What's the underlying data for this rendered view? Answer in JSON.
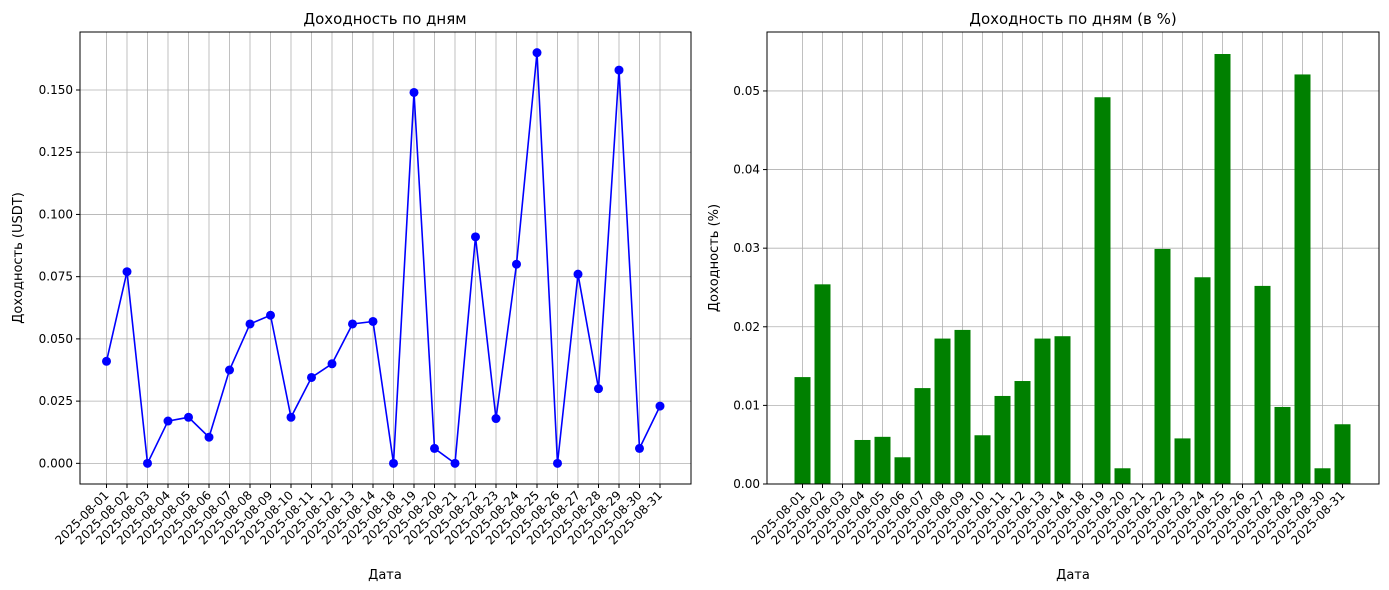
{
  "charts": [
    {
      "title": "Доходность по дням",
      "xlabel": "Дата",
      "ylabel": "Доходность (USDT)"
    },
    {
      "title": "Доходность по дням (в %)",
      "xlabel": "Дата",
      "ylabel": "Доходность (%)"
    }
  ],
  "colors": {
    "line": "#0000ff",
    "bar": "#008000"
  },
  "chart_data": [
    {
      "type": "line",
      "title": "Доходность по дням",
      "xlabel": "Дата",
      "ylabel": "Доходность (USDT)",
      "categories": [
        "2025-08-01",
        "2025-08-02",
        "2025-08-03",
        "2025-08-04",
        "2025-08-05",
        "2025-08-06",
        "2025-08-07",
        "2025-08-08",
        "2025-08-09",
        "2025-08-10",
        "2025-08-11",
        "2025-08-12",
        "2025-08-13",
        "2025-08-14",
        "2025-08-18",
        "2025-08-19",
        "2025-08-20",
        "2025-08-21",
        "2025-08-22",
        "2025-08-23",
        "2025-08-24",
        "2025-08-25",
        "2025-08-26",
        "2025-08-27",
        "2025-08-28",
        "2025-08-29",
        "2025-08-30",
        "2025-08-31"
      ],
      "values": [
        0.041,
        0.077,
        0.0,
        0.017,
        0.0185,
        0.0105,
        0.0375,
        0.056,
        0.0595,
        0.0185,
        0.0345,
        0.04,
        0.056,
        0.057,
        0.0,
        0.149,
        0.006,
        0.0,
        0.091,
        0.018,
        0.08,
        0.165,
        0.0,
        0.076,
        0.03,
        0.158,
        0.006,
        0.023
      ],
      "marker": "circle",
      "yticks": [
        0.0,
        0.025,
        0.05,
        0.075,
        0.1,
        0.125,
        0.15
      ],
      "ytick_labels": [
        "0.000",
        "0.025",
        "0.050",
        "0.075",
        "0.100",
        "0.125",
        "0.150"
      ],
      "ylim": [
        -0.0083,
        0.1733
      ],
      "grid": true
    },
    {
      "type": "bar",
      "title": "Доходность по дням (в %)",
      "xlabel": "Дата",
      "ylabel": "Доходность (%)",
      "categories": [
        "2025-08-01",
        "2025-08-02",
        "2025-08-03",
        "2025-08-04",
        "2025-08-05",
        "2025-08-06",
        "2025-08-07",
        "2025-08-08",
        "2025-08-09",
        "2025-08-10",
        "2025-08-11",
        "2025-08-12",
        "2025-08-13",
        "2025-08-14",
        "2025-08-18",
        "2025-08-19",
        "2025-08-20",
        "2025-08-21",
        "2025-08-22",
        "2025-08-23",
        "2025-08-24",
        "2025-08-25",
        "2025-08-26",
        "2025-08-27",
        "2025-08-28",
        "2025-08-29",
        "2025-08-30",
        "2025-08-31"
      ],
      "values": [
        0.0136,
        0.0254,
        0.0,
        0.0056,
        0.006,
        0.0034,
        0.0122,
        0.0185,
        0.0196,
        0.0062,
        0.0112,
        0.0131,
        0.0185,
        0.0188,
        0.0,
        0.0492,
        0.002,
        0.0,
        0.0299,
        0.0058,
        0.0263,
        0.0547,
        0.0,
        0.0252,
        0.0098,
        0.0521,
        0.002,
        0.0076
      ],
      "yticks": [
        0.0,
        0.01,
        0.02,
        0.03,
        0.04,
        0.05
      ],
      "ytick_labels": [
        "0.00",
        "0.01",
        "0.02",
        "0.03",
        "0.04",
        "0.05"
      ],
      "ylim": [
        0,
        0.0575
      ],
      "grid": true
    }
  ]
}
